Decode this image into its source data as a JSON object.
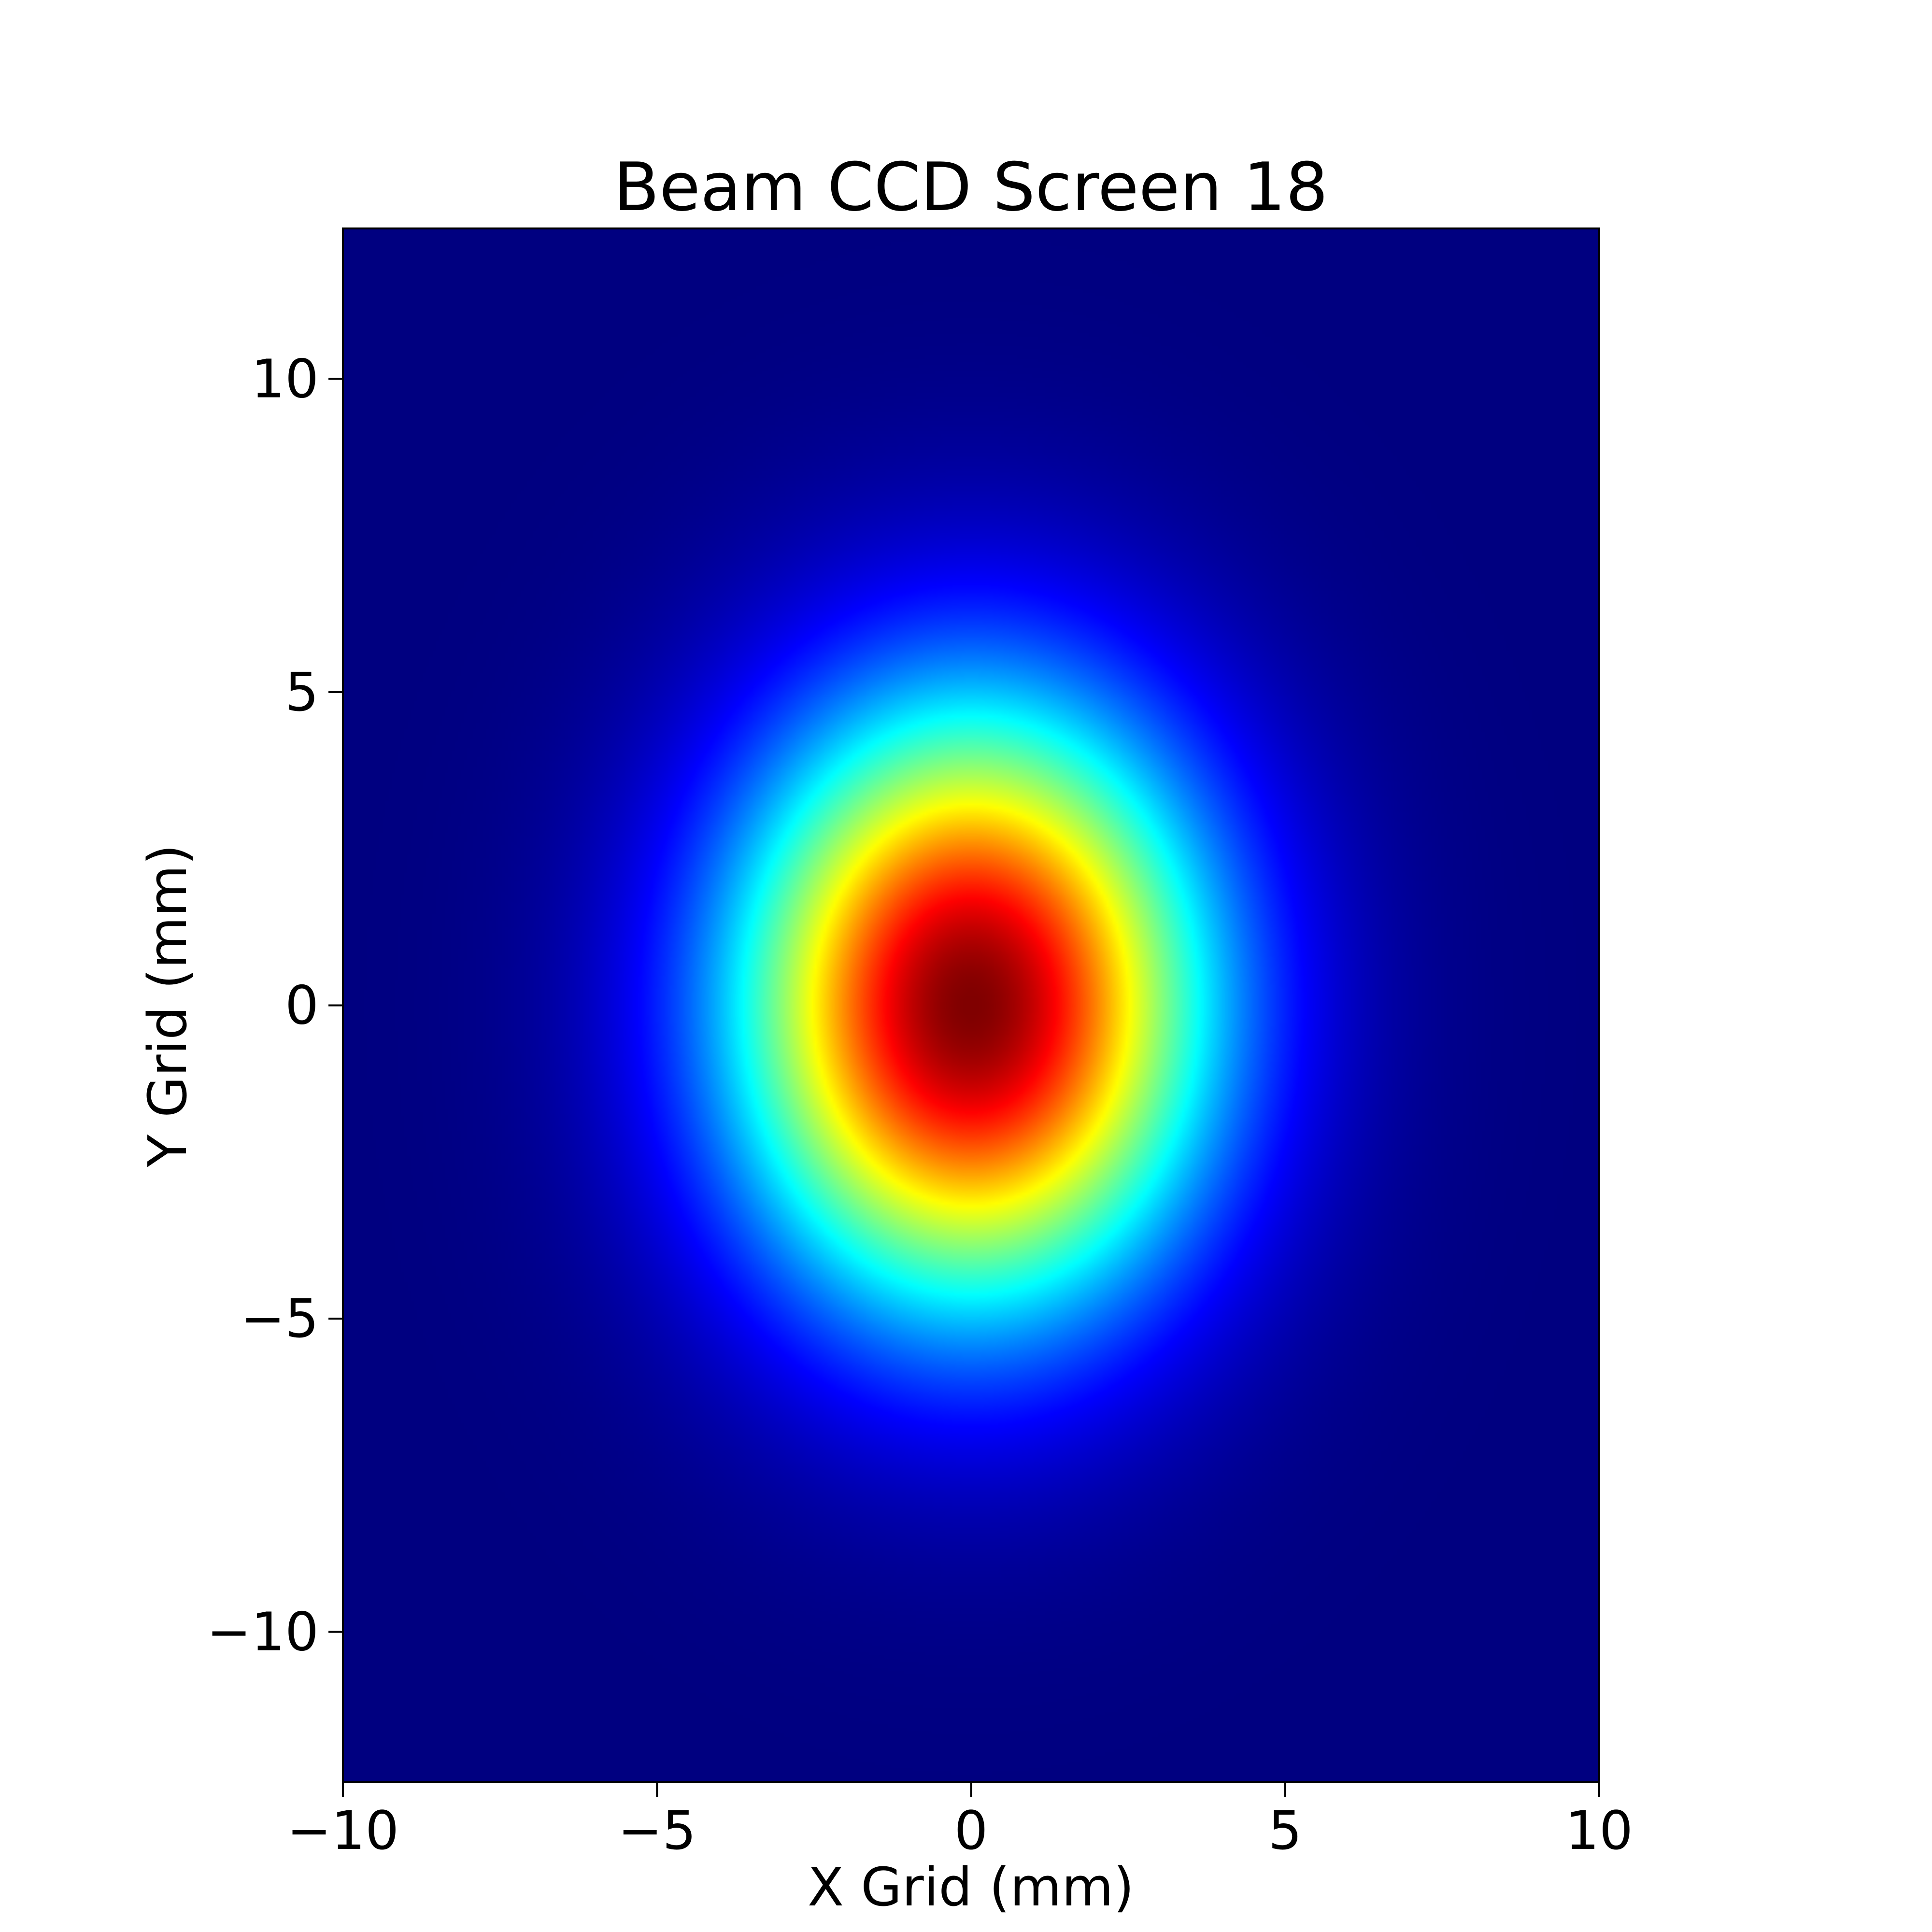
{
  "chart_data": {
    "type": "heatmap",
    "title": "Beam CCD Screen 18",
    "xlabel": "X Grid (mm)",
    "ylabel": "Y Grid (mm)",
    "xlim": [
      -10,
      10
    ],
    "ylim": [
      -12.4,
      12.4
    ],
    "xticks": [
      -10,
      -5,
      0,
      5,
      10
    ],
    "xtick_labels": [
      "−10",
      "−5",
      "0",
      "5",
      "10"
    ],
    "yticks": [
      -10,
      -5,
      0,
      5,
      10
    ],
    "ytick_labels": [
      "−10",
      "−5",
      "0",
      "5",
      "10"
    ],
    "colormap": "jet",
    "grid": false,
    "beam": {
      "center_x_mm": 0.0,
      "center_y_mm": 0.0,
      "sigma_x_mm": 2.6,
      "sigma_y_mm": 3.3,
      "peak": 1.0
    }
  }
}
